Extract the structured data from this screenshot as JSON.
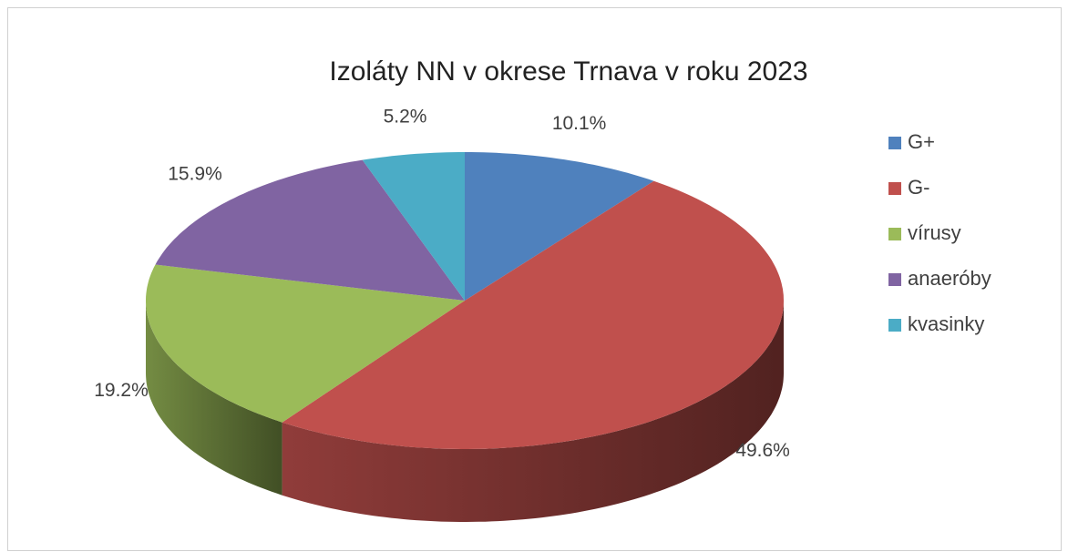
{
  "chart_data": {
    "type": "pie",
    "title": "Izoláty NN v okrese Trnava v roku 2023",
    "categories": [
      "G+",
      "G-",
      "vírusy",
      "anaeróby",
      "kvasinky"
    ],
    "values": [
      10.1,
      49.6,
      19.2,
      15.9,
      5.2
    ],
    "value_labels": [
      "10.1%",
      "49.6%",
      "19.2%",
      "15.9%",
      "5.2%"
    ],
    "colors": [
      "#4f81bd",
      "#c0504d",
      "#9bbb59",
      "#8064a2",
      "#4bacc6"
    ],
    "legend": "right"
  }
}
